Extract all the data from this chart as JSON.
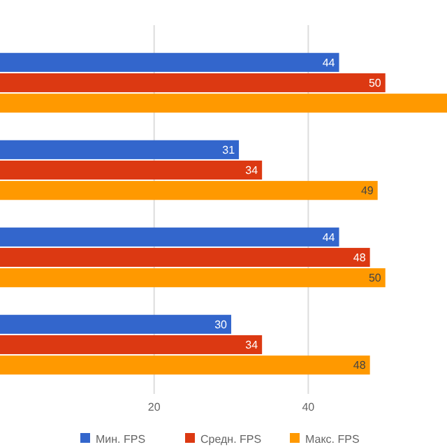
{
  "chart_data": {
    "type": "bar",
    "orientation": "horizontal",
    "categories": [
      null,
      null,
      null,
      null
    ],
    "series": [
      {
        "name": "Мин. FPS",
        "color": "#3366cc",
        "values": [
          44,
          31,
          44,
          30
        ],
        "value_labels": [
          "44",
          "31",
          "44",
          "30"
        ]
      },
      {
        "name": "Средн. FPS",
        "color": "#dc3912",
        "values": [
          50,
          34,
          48,
          34
        ],
        "value_labels": [
          "50",
          "34",
          "48",
          "34"
        ]
      },
      {
        "name": "Макс. FPS",
        "color": "#ff9900",
        "values": [
          58,
          49,
          50,
          48
        ],
        "value_labels": [
          null,
          "49",
          "50",
          "48"
        ]
      }
    ],
    "xlim": [
      0,
      58
    ],
    "xticks": [
      20,
      40
    ],
    "grid": "x",
    "legend": "bottom"
  }
}
